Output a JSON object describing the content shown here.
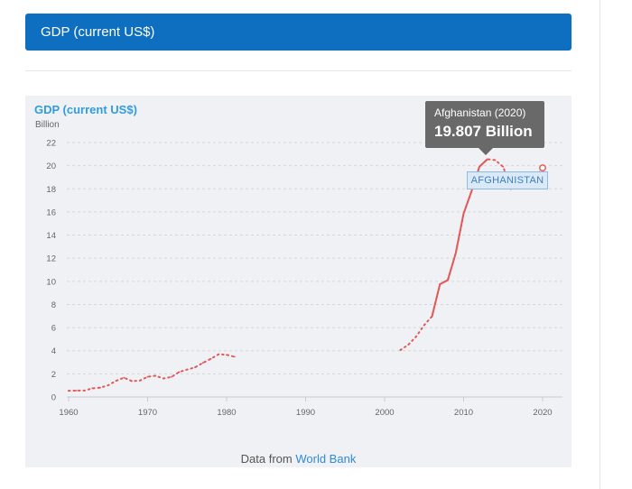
{
  "header": {
    "title": "GDP (current US$)"
  },
  "source": {
    "prefix": "Data from",
    "link_text": "World Bank"
  },
  "tooltip": {
    "country_year": "Afghanistan (2020)",
    "value": "19.807 Billion"
  },
  "series_label": "AFGHANISTAN",
  "colors": {
    "header_bg": "#0e6fc1",
    "title": "#2f9de0",
    "line": "#e05a5a",
    "link": "#2f8ad8"
  },
  "chart_data": {
    "type": "line",
    "title": "GDP (current US$)",
    "unit": "Billion",
    "xlabel": "",
    "ylabel": "",
    "xlim": [
      1960,
      2020
    ],
    "ylim": [
      0,
      22
    ],
    "x_ticks": [
      1960,
      1970,
      1980,
      1990,
      2000,
      2010,
      2020
    ],
    "y_ticks": [
      0,
      2,
      4,
      6,
      8,
      10,
      12,
      14,
      16,
      18,
      20,
      22
    ],
    "grid": true,
    "series": [
      {
        "name": "AFGHANISTAN",
        "color": "#e05a5a",
        "points": [
          [
            1960,
            0.54
          ],
          [
            1961,
            0.55
          ],
          [
            1962,
            0.55
          ],
          [
            1963,
            0.75
          ],
          [
            1964,
            0.8
          ],
          [
            1965,
            1.01
          ],
          [
            1966,
            1.4
          ],
          [
            1967,
            1.67
          ],
          [
            1968,
            1.37
          ],
          [
            1969,
            1.41
          ],
          [
            1970,
            1.75
          ],
          [
            1971,
            1.83
          ],
          [
            1972,
            1.6
          ],
          [
            1973,
            1.73
          ],
          [
            1974,
            2.16
          ],
          [
            1975,
            2.37
          ],
          [
            1976,
            2.56
          ],
          [
            1977,
            2.95
          ],
          [
            1978,
            3.3
          ],
          [
            1979,
            3.7
          ],
          [
            1980,
            3.64
          ],
          [
            1981,
            3.48
          ],
          [
            2002,
            4.06
          ],
          [
            2003,
            4.52
          ],
          [
            2004,
            5.23
          ],
          [
            2005,
            6.21
          ],
          [
            2006,
            6.97
          ],
          [
            2007,
            9.75
          ],
          [
            2008,
            10.11
          ],
          [
            2009,
            12.44
          ],
          [
            2010,
            15.86
          ],
          [
            2011,
            17.8
          ],
          [
            2012,
            19.91
          ],
          [
            2013,
            20.56
          ],
          [
            2014,
            20.48
          ],
          [
            2015,
            19.91
          ],
          [
            2016,
            18.02
          ],
          [
            2017,
            18.9
          ],
          [
            2018,
            18.42
          ],
          [
            2019,
            18.9
          ],
          [
            2020,
            19.81
          ]
        ]
      }
    ],
    "highlight": {
      "x": 2020,
      "y": 19.807
    }
  }
}
